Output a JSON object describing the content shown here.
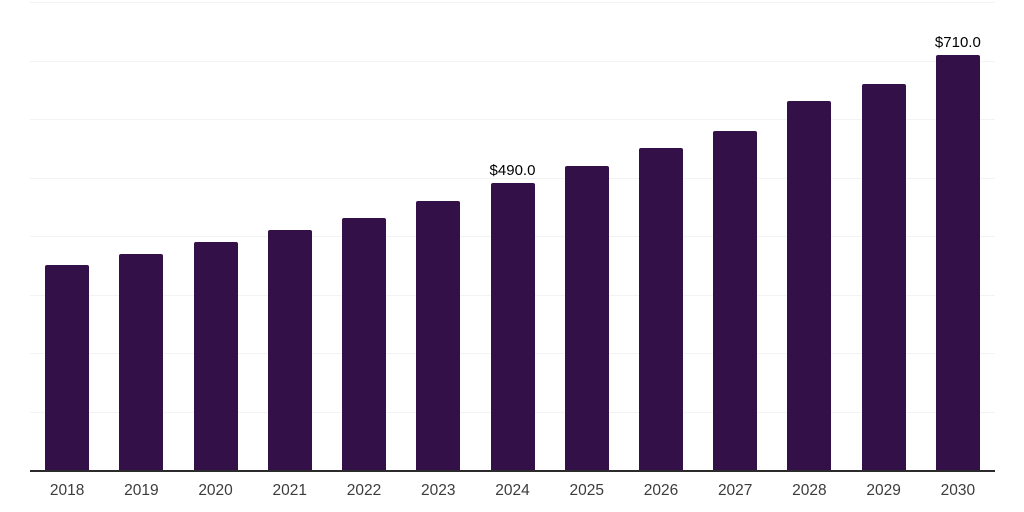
{
  "chart_data": {
    "type": "bar",
    "title": "",
    "xlabel": "",
    "ylabel": "",
    "categories": [
      "2018",
      "2019",
      "2020",
      "2021",
      "2022",
      "2023",
      "2024",
      "2025",
      "2026",
      "2027",
      "2028",
      "2029",
      "2030"
    ],
    "values": [
      350,
      370,
      390,
      410,
      430,
      460,
      490,
      520,
      550,
      580,
      630,
      660,
      710
    ],
    "data_labels": {
      "2024": "$490.0",
      "2030": "$710.0"
    },
    "ylim": [
      0,
      800
    ],
    "y_gridline_step": 100,
    "grid": true,
    "y_axis_tick_labels_visible": false,
    "legend_position": "none",
    "colors": {
      "bar": "#341049",
      "gridline": "#f3f3f3",
      "axis_line": "#2b2b2b",
      "tick_label": "#3c3c3c",
      "data_label": "#000000",
      "background": "#ffffff"
    }
  }
}
